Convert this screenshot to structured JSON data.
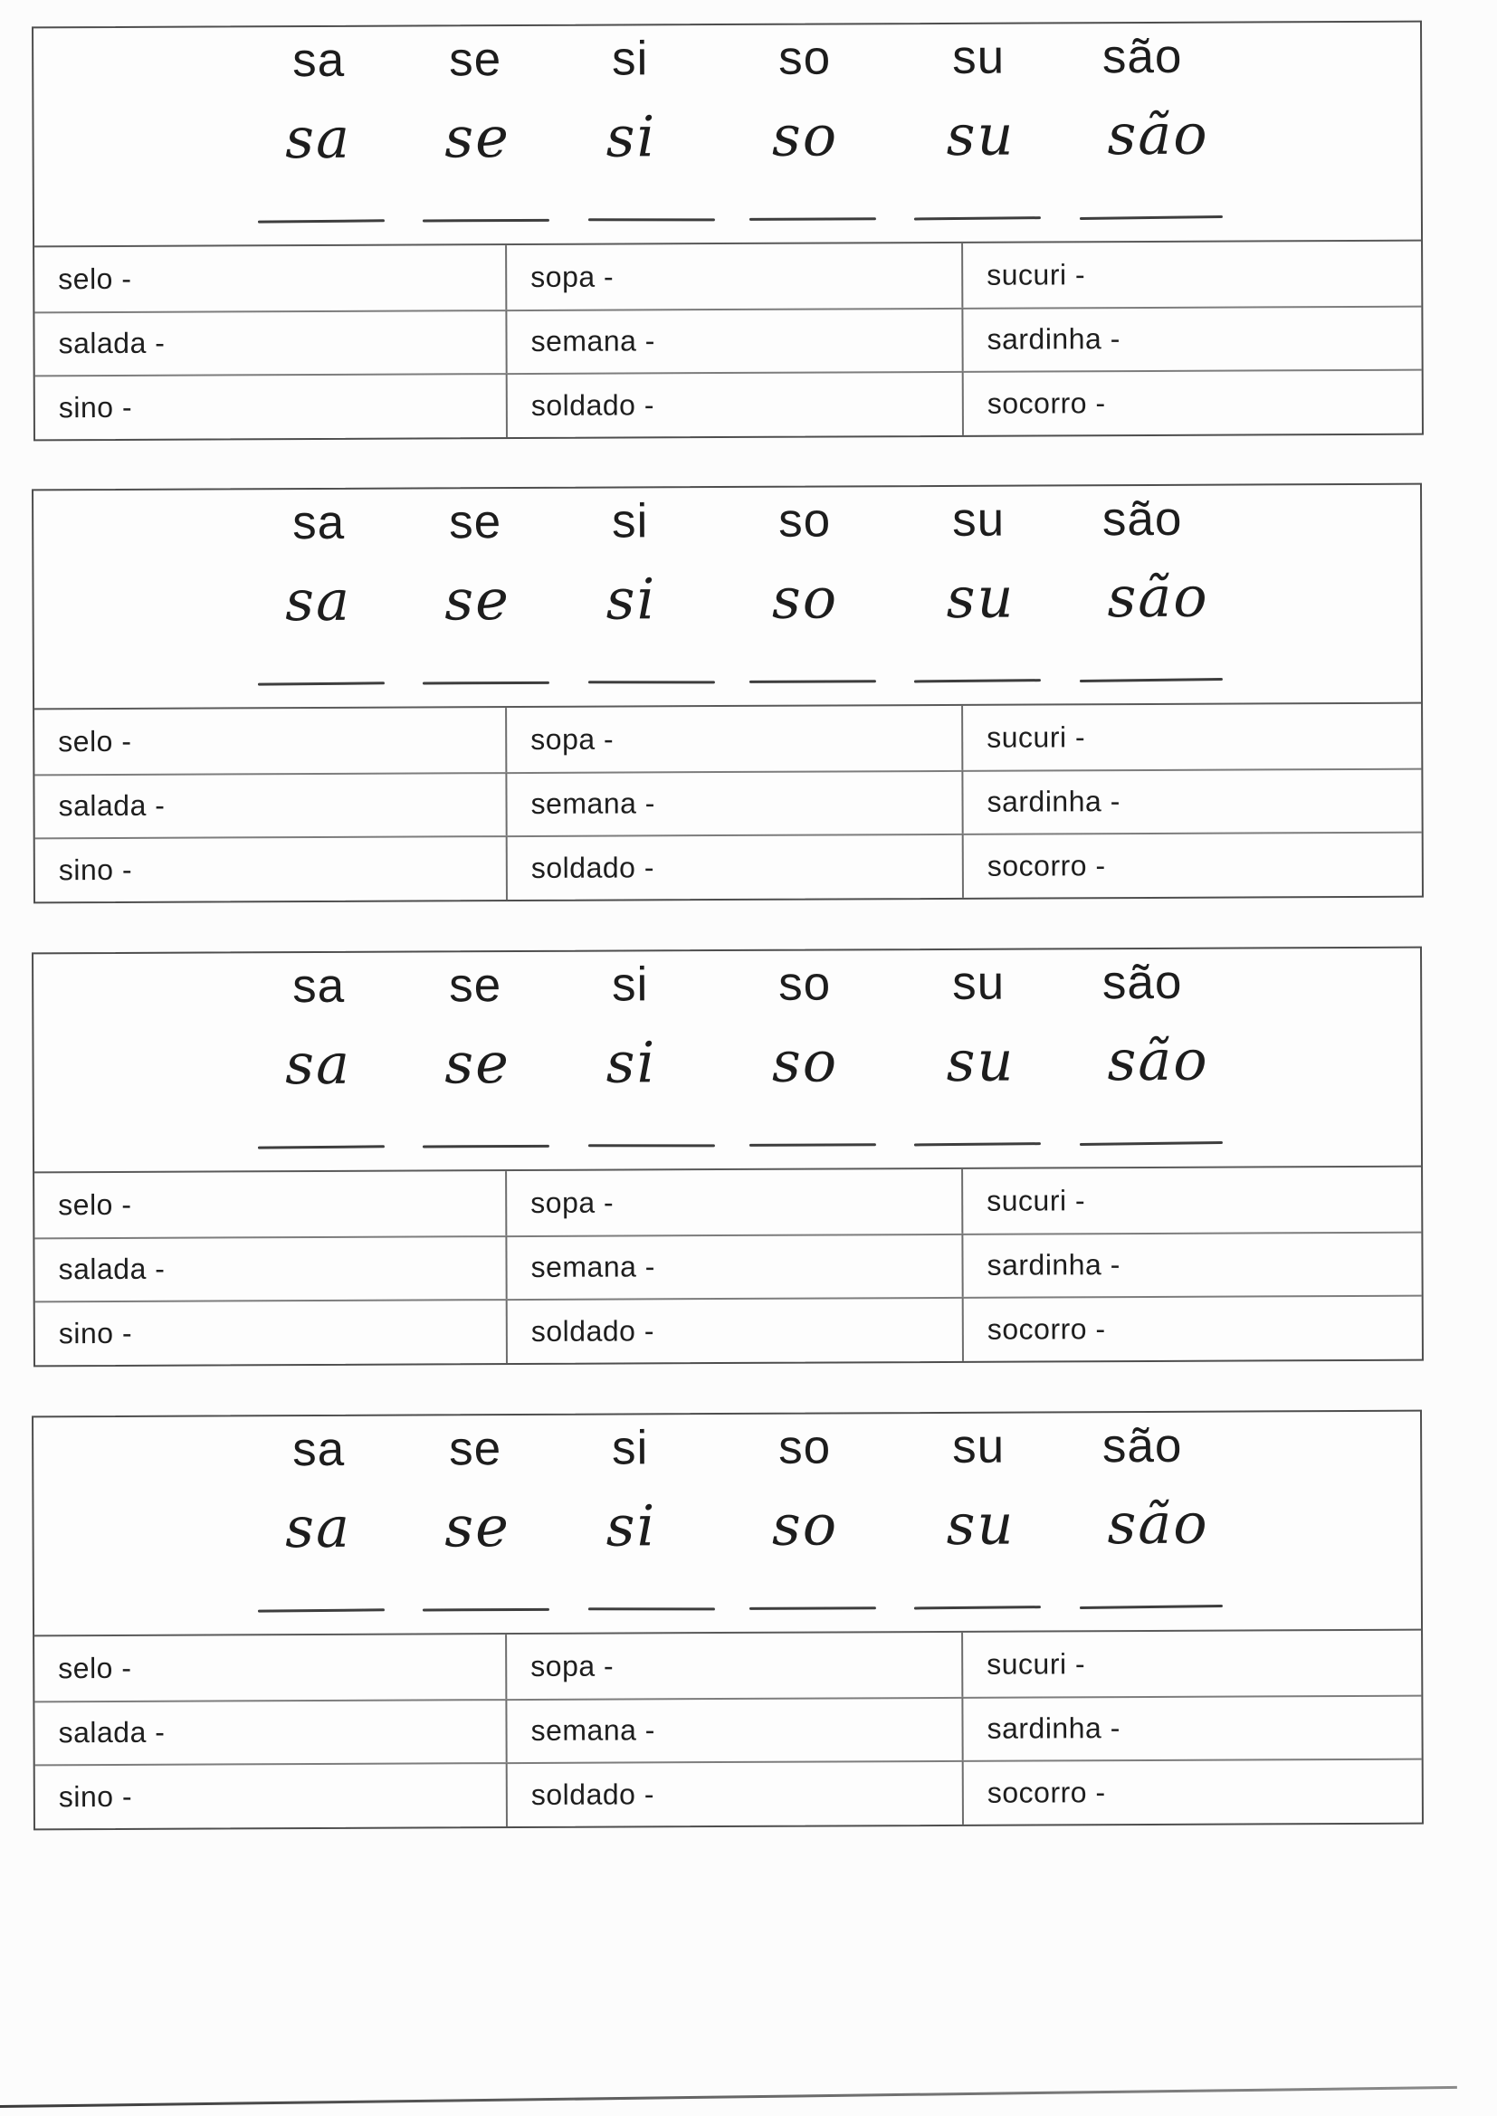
{
  "document": {
    "kind": "scanned syllable practice worksheet",
    "language": "Portuguese"
  },
  "colors": {
    "paper": "#fcfcfc",
    "ink": "#1d1d1d",
    "border_dark": "#4e4e4e",
    "border_light": "#7d7d7d"
  },
  "blocks": [
    {
      "print_syllables": [
        "sa",
        "se",
        "si",
        "so",
        "su",
        "são"
      ],
      "cursive_syllables": [
        "sa",
        "se",
        "si",
        "so",
        "su",
        "são"
      ],
      "blank_line_count": 6,
      "table_rows": [
        [
          "selo -",
          "sopa -",
          "sucuri -"
        ],
        [
          "salada -",
          "semana -",
          "sardinha -"
        ],
        [
          "sino -",
          "soldado -",
          "socorro -"
        ]
      ]
    },
    {
      "print_syllables": [
        "sa",
        "se",
        "si",
        "so",
        "su",
        "são"
      ],
      "cursive_syllables": [
        "sa",
        "se",
        "si",
        "so",
        "su",
        "são"
      ],
      "blank_line_count": 6,
      "table_rows": [
        [
          "selo -",
          "sopa -",
          "sucuri -"
        ],
        [
          "salada -",
          "semana -",
          "sardinha -"
        ],
        [
          "sino -",
          "soldado -",
          "socorro -"
        ]
      ]
    },
    {
      "print_syllables": [
        "sa",
        "se",
        "si",
        "so",
        "su",
        "são"
      ],
      "cursive_syllables": [
        "sa",
        "se",
        "si",
        "so",
        "su",
        "são"
      ],
      "blank_line_count": 6,
      "table_rows": [
        [
          "selo -",
          "sopa -",
          "sucuri -"
        ],
        [
          "salada -",
          "semana -",
          "sardinha -"
        ],
        [
          "sino -",
          "soldado -",
          "socorro -"
        ]
      ]
    },
    {
      "print_syllables": [
        "sa",
        "se",
        "si",
        "so",
        "su",
        "são"
      ],
      "cursive_syllables": [
        "sa",
        "se",
        "si",
        "so",
        "su",
        "são"
      ],
      "blank_line_count": 6,
      "table_rows": [
        [
          "selo -",
          "sopa -",
          "sucuri -"
        ],
        [
          "salada -",
          "semana -",
          "sardinha -"
        ],
        [
          "sino -",
          "soldado -",
          "socorro -"
        ]
      ]
    }
  ]
}
